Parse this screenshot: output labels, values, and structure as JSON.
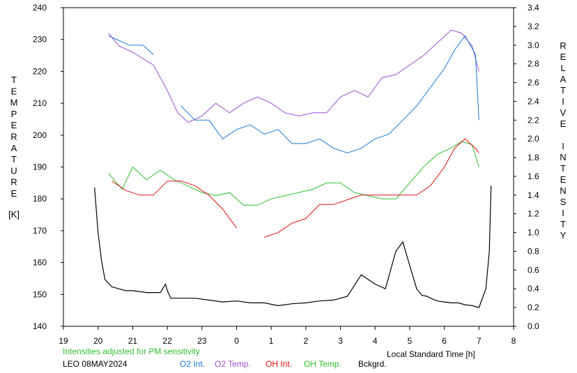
{
  "chart_data": {
    "type": "line",
    "left_axis": {
      "label": "TEMPERATURE",
      "unit": "[K]",
      "range": [
        140,
        240
      ],
      "ticks": [
        140,
        150,
        160,
        170,
        180,
        190,
        200,
        210,
        220,
        230,
        240
      ]
    },
    "right_axis": {
      "label": "RELATIVE INTENSITY",
      "range": [
        0.0,
        3.4
      ],
      "ticks": [
        "0.0",
        "0.2",
        "0.4",
        "0.6",
        "0.8",
        "1.0",
        "1.2",
        "1.4",
        "1.6",
        "1.8",
        "2.0",
        "2.2",
        "2.4",
        "2.6",
        "2.8",
        "3.0",
        "3.2",
        "3.4"
      ]
    },
    "x_axis": {
      "label": "Local Standard Time [h]",
      "range": [
        19,
        32
      ],
      "tick_labels": [
        "19",
        "20",
        "21",
        "22",
        "23",
        "0",
        "1",
        "2",
        "3",
        "4",
        "5",
        "6",
        "7",
        "8"
      ]
    },
    "note": "Intensities adjusted for PM sensitivity",
    "station_date": "LEO 08MAY2024",
    "legend": [
      {
        "name": "O2 Int.",
        "color": "#1a78d8"
      },
      {
        "name": "O2 Temp.",
        "color": "#9a4fd0"
      },
      {
        "name": "OH Int.",
        "color": "#e01010"
      },
      {
        "name": "OH Temp.",
        "color": "#2fbf2f"
      },
      {
        "name": "Bckgrd.",
        "color": "#000000"
      }
    ],
    "series": [
      {
        "name": "O2 Temp.",
        "axis": "left",
        "color": "#9a4fd0",
        "x": [
          20.3,
          20.6,
          21.0,
          21.3,
          21.6,
          22.0,
          22.3,
          22.6,
          23.0,
          23.4,
          23.8,
          24.2,
          24.6,
          25.0,
          25.4,
          25.8,
          26.2,
          26.6,
          27.0,
          27.4,
          27.8,
          28.2,
          28.6,
          29.0,
          29.4,
          29.8,
          30.2,
          30.5,
          30.8,
          31.0
        ],
        "y": [
          232,
          228,
          226,
          224,
          222,
          214,
          207,
          204,
          206,
          210,
          207,
          210,
          212,
          210,
          207,
          206,
          207,
          207,
          212,
          214,
          212,
          218,
          219,
          222,
          225,
          229,
          233,
          232,
          228,
          220
        ]
      },
      {
        "name": "O2 Int.",
        "axis": "right",
        "color": "#1a78d8",
        "x": [
          20.3,
          20.6,
          20.9,
          21.3,
          21.6,
          22.0,
          22.4,
          22.8,
          23.2,
          23.6,
          24.0,
          24.4,
          24.8,
          25.2,
          25.6,
          26.0,
          26.4,
          26.8,
          27.2,
          27.6,
          28.0,
          28.4,
          28.8,
          29.2,
          29.6,
          30.0,
          30.3,
          30.6,
          30.9,
          31.0
        ],
        "y": [
          3.1,
          3.05,
          3.0,
          3.0,
          2.9,
          null,
          2.35,
          2.2,
          2.2,
          2.0,
          2.1,
          2.15,
          2.05,
          2.1,
          1.95,
          1.95,
          2.0,
          1.9,
          1.85,
          1.9,
          2.0,
          2.05,
          2.2,
          2.35,
          2.55,
          2.75,
          2.95,
          3.1,
          2.9,
          2.2
        ]
      },
      {
        "name": "OH Temp.",
        "axis": "left",
        "color": "#2fbf2f",
        "x": [
          20.3,
          20.7,
          21.0,
          21.4,
          21.8,
          22.2,
          22.6,
          23.0,
          23.4,
          23.8,
          24.2,
          24.6,
          25.0,
          25.4,
          25.8,
          26.2,
          26.6,
          27.0,
          27.4,
          27.8,
          28.2,
          28.6,
          29.0,
          29.4,
          29.8,
          30.2,
          30.5,
          30.8,
          31.0
        ],
        "y": [
          188,
          183,
          190,
          186,
          189,
          186,
          184,
          182,
          181,
          182,
          178,
          178,
          180,
          181,
          182,
          183,
          185,
          185,
          182,
          181,
          180,
          180,
          185,
          190,
          194,
          196,
          198,
          197,
          190
        ]
      },
      {
        "name": "OH Int.",
        "axis": "right",
        "color": "#e01010",
        "x": [
          20.4,
          20.8,
          21.2,
          21.6,
          22.0,
          22.4,
          22.8,
          23.2,
          23.6,
          24.0,
          24.4,
          24.8,
          25.2,
          25.6,
          26.0,
          26.4,
          26.8,
          27.2,
          27.6,
          28.0,
          28.4,
          28.8,
          29.2,
          29.6,
          30.0,
          30.3,
          30.6,
          30.9,
          31.0
        ],
        "y": [
          1.55,
          1.45,
          1.4,
          1.4,
          1.55,
          1.55,
          1.5,
          1.4,
          1.25,
          1.05,
          null,
          0.95,
          1.0,
          1.1,
          1.15,
          1.3,
          1.3,
          1.35,
          1.4,
          1.4,
          1.4,
          1.4,
          1.4,
          1.5,
          1.7,
          1.9,
          2.0,
          1.9,
          1.85
        ]
      },
      {
        "name": "Bckgrd.",
        "axis": "right",
        "color": "#000000",
        "x": [
          19.9,
          20.0,
          20.1,
          20.2,
          20.4,
          20.6,
          20.8,
          21.0,
          21.4,
          21.8,
          21.95,
          22.0,
          22.1,
          22.4,
          22.8,
          23.2,
          23.6,
          24.0,
          24.4,
          24.8,
          25.2,
          25.6,
          26.0,
          26.4,
          26.8,
          27.2,
          27.6,
          28.0,
          28.3,
          28.6,
          28.8,
          29.0,
          29.2,
          29.35,
          29.5,
          29.6,
          29.8,
          30.0,
          30.2,
          30.4,
          30.6,
          30.8,
          31.0,
          31.2,
          31.3,
          31.35
        ],
        "y": [
          1.48,
          1.0,
          0.7,
          0.5,
          0.42,
          0.4,
          0.38,
          0.38,
          0.36,
          0.36,
          0.45,
          0.38,
          0.3,
          0.3,
          0.3,
          0.28,
          0.26,
          0.27,
          0.25,
          0.25,
          0.22,
          0.24,
          0.25,
          0.27,
          0.28,
          0.32,
          0.55,
          0.45,
          0.4,
          0.8,
          0.9,
          0.65,
          0.4,
          0.33,
          0.32,
          0.3,
          0.27,
          0.26,
          0.25,
          0.25,
          0.23,
          0.22,
          0.2,
          0.4,
          0.8,
          1.5
        ]
      }
    ]
  }
}
